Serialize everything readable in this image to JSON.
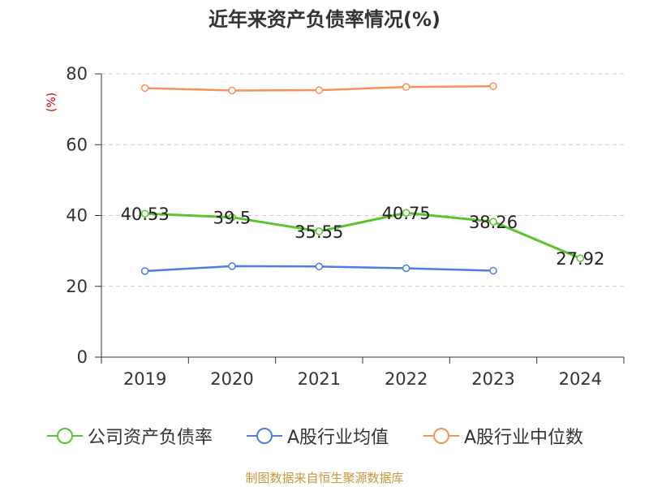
{
  "chart_data": {
    "type": "line",
    "title": "近年来资产负债率情况(%)",
    "ylabel": "(%)",
    "categories": [
      "2019",
      "2020",
      "2021",
      "2022",
      "2023",
      "2024"
    ],
    "ylim": [
      0,
      80
    ],
    "yticks": [
      0,
      20,
      40,
      60,
      80
    ],
    "grid": true,
    "legend_position": "bottom",
    "series": [
      {
        "name": "公司资产负债率",
        "color": "#5bc42f",
        "values": [
          40.53,
          39.5,
          35.55,
          40.75,
          38.26,
          27.92
        ],
        "labels": [
          "40.53",
          "39.5",
          "35.55",
          "40.75",
          "38.26",
          "27.92"
        ]
      },
      {
        "name": "A股行业均值",
        "color": "#4a7fdc",
        "values": [
          24.3,
          25.7,
          25.6,
          25.1,
          24.4,
          null
        ]
      },
      {
        "name": "A股行业中位数",
        "color": "#f5915a",
        "values": [
          76.0,
          75.3,
          75.4,
          76.3,
          76.5,
          null
        ]
      }
    ]
  },
  "source": "制图数据来自恒生聚源数据库"
}
